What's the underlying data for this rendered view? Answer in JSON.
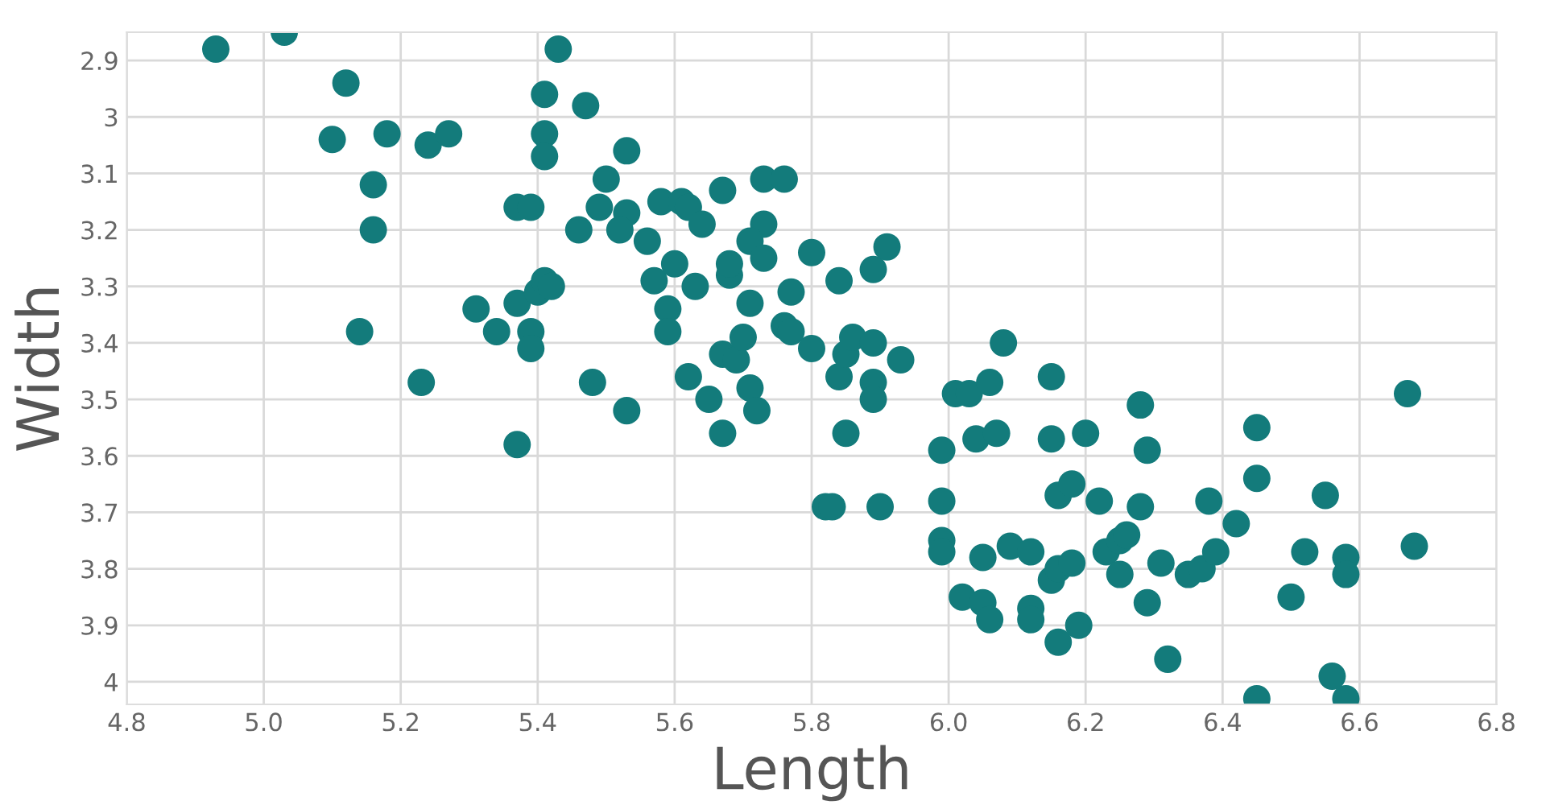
{
  "chart_data": {
    "type": "scatter",
    "xlabel": "Length",
    "ylabel": "Width",
    "xlim": [
      4.8,
      6.8
    ],
    "ylim": [
      4.04,
      2.85
    ],
    "xticks": [
      {
        "value": 4.8,
        "label": "4.8"
      },
      {
        "value": 5.0,
        "label": "5.0"
      },
      {
        "value": 5.2,
        "label": "5.2"
      },
      {
        "value": 5.4,
        "label": "5.4"
      },
      {
        "value": 5.6,
        "label": "5.6"
      },
      {
        "value": 5.8,
        "label": "5.8"
      },
      {
        "value": 6.0,
        "label": "6.0"
      },
      {
        "value": 6.2,
        "label": "6.2"
      },
      {
        "value": 6.4,
        "label": "6.4"
      },
      {
        "value": 6.6,
        "label": "6.6"
      },
      {
        "value": 6.8,
        "label": "6.8"
      }
    ],
    "yticks": [
      2.9,
      3,
      3.1,
      3.2,
      3.3,
      3.4,
      3.5,
      3.6,
      3.7,
      3.8,
      3.9,
      4
    ],
    "grid": true,
    "marker": "circle",
    "color": "#137b7b",
    "x": [
      4.93,
      5.03,
      5.12,
      5.1,
      5.18,
      5.24,
      5.27,
      5.16,
      5.16,
      5.14,
      5.23,
      5.43,
      5.41,
      5.47,
      5.41,
      5.41,
      5.53,
      5.5,
      5.37,
      5.39,
      5.49,
      5.53,
      5.46,
      5.52,
      5.56,
      5.58,
      5.61,
      5.62,
      5.64,
      5.67,
      5.73,
      5.76,
      5.73,
      5.71,
      5.73,
      5.31,
      5.37,
      5.34,
      5.4,
      5.41,
      5.42,
      5.39,
      5.39,
      5.48,
      5.37,
      5.53,
      5.57,
      5.59,
      5.59,
      5.62,
      5.65,
      5.6,
      5.63,
      5.68,
      5.68,
      5.67,
      5.67,
      5.69,
      5.7,
      5.71,
      5.71,
      5.72,
      5.77,
      5.76,
      5.77,
      5.8,
      5.8,
      5.82,
      5.84,
      5.85,
      5.86,
      5.84,
      5.83,
      5.85,
      5.89,
      5.89,
      5.89,
      5.89,
      5.9,
      5.91,
      5.93,
      6.01,
      6.03,
      6.06,
      6.08,
      6.15,
      5.99,
      6.04,
      6.07,
      6.15,
      6.2,
      6.28,
      6.29,
      6.45,
      6.67,
      5.99,
      5.99,
      5.99,
      6.05,
      6.09,
      6.12,
      6.16,
      6.18,
      6.22,
      6.28,
      6.23,
      6.25,
      6.26,
      6.31,
      6.25,
      6.35,
      6.37,
      6.39,
      6.38,
      6.42,
      6.45,
      6.55,
      6.52,
      6.58,
      6.58,
      6.68,
      6.5,
      6.15,
      6.16,
      6.18,
      6.02,
      6.05,
      6.06,
      6.12,
      6.12,
      6.16,
      6.19,
      6.29,
      6.32,
      6.45,
      6.56,
      6.58
    ],
    "values": [
      2.88,
      2.85,
      2.94,
      3.04,
      3.03,
      3.05,
      3.03,
      3.12,
      3.2,
      3.38,
      3.47,
      2.88,
      2.96,
      2.98,
      3.03,
      3.07,
      3.06,
      3.11,
      3.16,
      3.16,
      3.16,
      3.17,
      3.2,
      3.2,
      3.22,
      3.15,
      3.15,
      3.16,
      3.19,
      3.13,
      3.11,
      3.11,
      3.19,
      3.22,
      3.25,
      3.34,
      3.33,
      3.38,
      3.31,
      3.29,
      3.3,
      3.38,
      3.41,
      3.47,
      3.58,
      3.52,
      3.29,
      3.34,
      3.38,
      3.46,
      3.5,
      3.26,
      3.3,
      3.28,
      3.26,
      3.56,
      3.42,
      3.43,
      3.39,
      3.33,
      3.48,
      3.52,
      3.31,
      3.37,
      3.38,
      3.41,
      3.24,
      3.69,
      3.46,
      3.42,
      3.39,
      3.29,
      3.69,
      3.56,
      3.4,
      3.47,
      3.5,
      3.27,
      3.69,
      3.23,
      3.43,
      3.49,
      3.49,
      3.47,
      3.4,
      3.46,
      3.59,
      3.57,
      3.56,
      3.57,
      3.56,
      3.51,
      3.59,
      3.55,
      3.49,
      3.68,
      3.75,
      3.77,
      3.78,
      3.76,
      3.77,
      3.67,
      3.65,
      3.68,
      3.69,
      3.77,
      3.75,
      3.74,
      3.79,
      3.81,
      3.81,
      3.8,
      3.77,
      3.68,
      3.72,
      3.64,
      3.67,
      3.77,
      3.78,
      3.81,
      3.76,
      3.85,
      3.82,
      3.8,
      3.79,
      3.85,
      3.86,
      3.89,
      3.87,
      3.89,
      3.93,
      3.9,
      3.86,
      3.96,
      4.03,
      3.99,
      4.03
    ]
  }
}
